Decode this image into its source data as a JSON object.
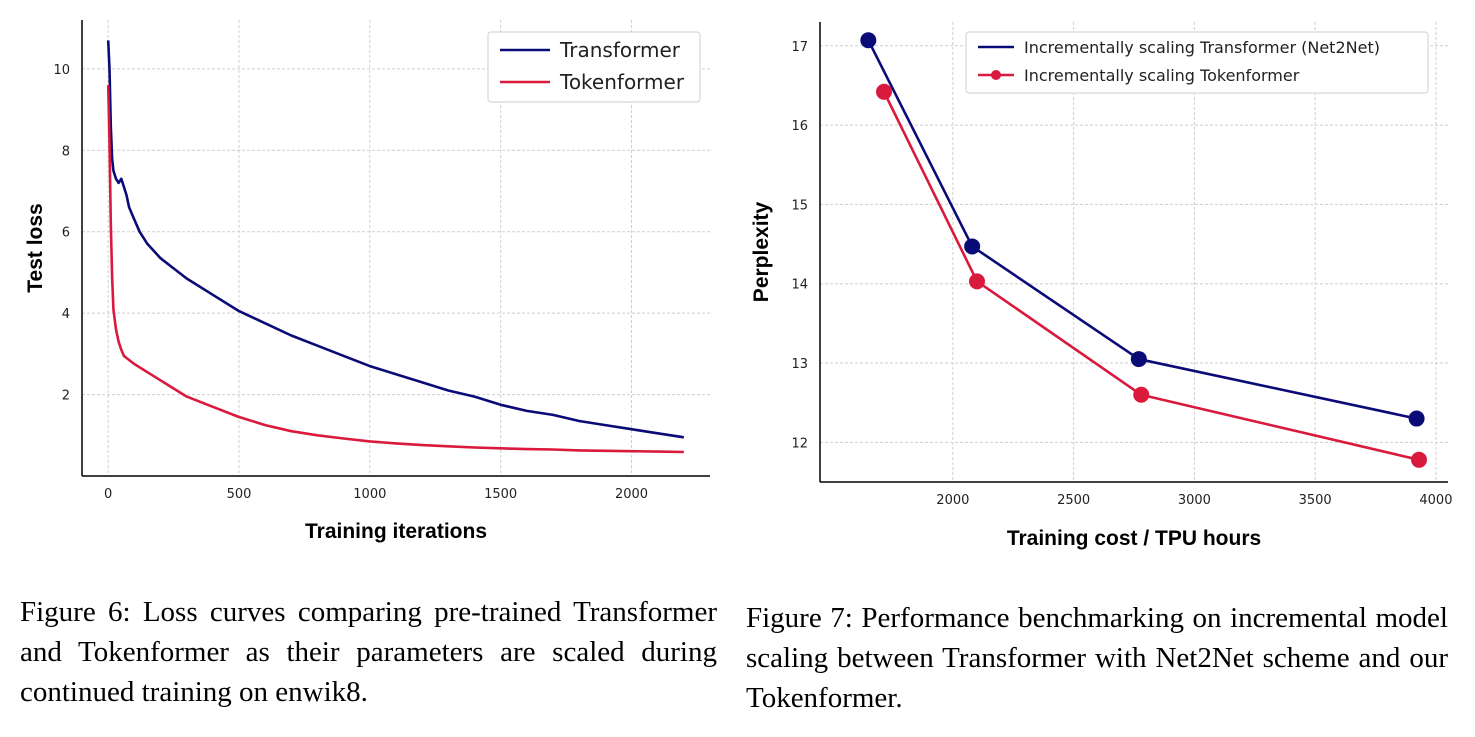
{
  "figure6": {
    "caption": "Figure 6: Loss curves comparing pre-trained Transformer and Tokenformer as their parameters are scaled during continued training on enwik8.",
    "chart_data": {
      "type": "line",
      "xlabel": "Training iterations",
      "ylabel": "Test loss",
      "xlim": [
        -100,
        2300
      ],
      "ylim": [
        0,
        11.2
      ],
      "xticks": [
        0,
        500,
        1000,
        1500,
        2000
      ],
      "yticks": [
        2,
        4,
        6,
        8,
        10
      ],
      "grid": true,
      "legend": "top-right",
      "series": [
        {
          "name": "Transformer",
          "color": "#0b0b78",
          "x": [
            0,
            5,
            10,
            15,
            20,
            30,
            40,
            50,
            60,
            70,
            80,
            100,
            120,
            150,
            200,
            250,
            300,
            400,
            500,
            600,
            700,
            800,
            900,
            1000,
            1100,
            1200,
            1300,
            1400,
            1500,
            1600,
            1700,
            1800,
            1900,
            2000,
            2100,
            2200
          ],
          "y": [
            10.7,
            10.0,
            8.6,
            7.8,
            7.5,
            7.3,
            7.2,
            7.3,
            7.1,
            6.9,
            6.6,
            6.3,
            6.0,
            5.7,
            5.35,
            5.1,
            4.85,
            4.45,
            4.05,
            3.75,
            3.45,
            3.2,
            2.95,
            2.7,
            2.5,
            2.3,
            2.1,
            1.95,
            1.75,
            1.6,
            1.5,
            1.35,
            1.25,
            1.15,
            1.05,
            0.95
          ]
        },
        {
          "name": "Tokenformer",
          "color": "#d91a3c",
          "x": [
            0,
            5,
            10,
            15,
            20,
            30,
            40,
            50,
            60,
            80,
            100,
            150,
            200,
            250,
            300,
            400,
            500,
            600,
            700,
            800,
            900,
            1000,
            1100,
            1200,
            1300,
            1400,
            1500,
            1600,
            1700,
            1800,
            1900,
            2000,
            2100,
            2200
          ],
          "y": [
            9.6,
            8.2,
            6.2,
            4.9,
            4.1,
            3.6,
            3.3,
            3.1,
            2.95,
            2.85,
            2.75,
            2.55,
            2.35,
            2.15,
            1.95,
            1.7,
            1.45,
            1.25,
            1.1,
            1.0,
            0.92,
            0.85,
            0.8,
            0.76,
            0.73,
            0.7,
            0.68,
            0.66,
            0.65,
            0.63,
            0.62,
            0.61,
            0.6,
            0.59
          ]
        }
      ]
    }
  },
  "figure7": {
    "caption": "Figure 7: Performance benchmarking on incremental model scaling between Transformer with Net2Net scheme and our Tokenformer.",
    "chart_data": {
      "type": "line",
      "xlabel": "Training cost / TPU hours",
      "ylabel": "Perplexity",
      "xlim": [
        1450,
        4050
      ],
      "ylim": [
        11.5,
        17.3
      ],
      "xticks": [
        2000,
        2500,
        3000,
        3500,
        4000
      ],
      "yticks": [
        12,
        13,
        14,
        15,
        16,
        17
      ],
      "grid": true,
      "legend": "top-right",
      "series": [
        {
          "name": "Incrementally scaling Transformer (Net2Net)",
          "color": "#0b0b78",
          "x": [
            1650,
            2080,
            2770,
            3920
          ],
          "y": [
            17.07,
            14.47,
            13.05,
            12.3
          ]
        },
        {
          "name": "Incrementally scaling Tokenformer",
          "color": "#d91a3c",
          "x": [
            1715,
            2100,
            2780,
            3930
          ],
          "y": [
            16.42,
            14.03,
            12.6,
            11.78
          ]
        }
      ]
    }
  }
}
